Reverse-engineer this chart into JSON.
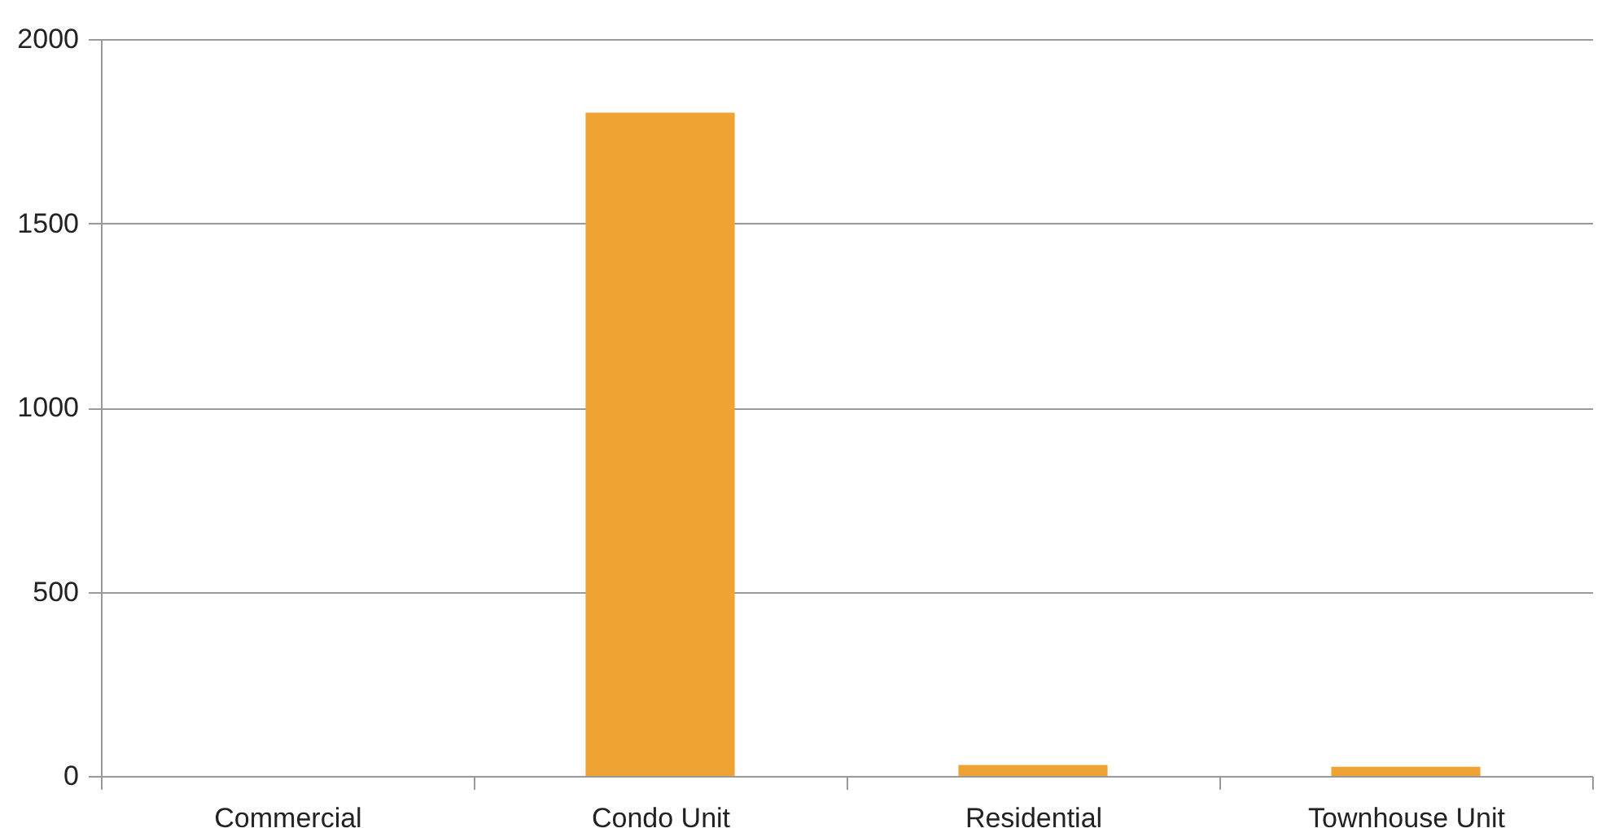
{
  "chart_data": {
    "type": "bar",
    "categories": [
      "Commercial",
      "Condo Unit",
      "Residential",
      "Townhouse Unit"
    ],
    "values": [
      0,
      1800,
      30,
      25
    ],
    "color": "#eea332",
    "ylim": [
      0,
      2000
    ],
    "yticks": [
      0,
      500,
      1000,
      1500,
      2000
    ],
    "grid": "y"
  }
}
